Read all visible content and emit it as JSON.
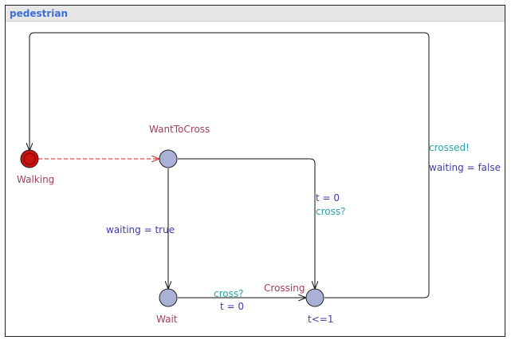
{
  "template": {
    "name": "pedestrian"
  },
  "colors": {
    "location_name": "#a0405a",
    "invariant": "#4a3f9a",
    "update": "#3d3da8",
    "sync": "#2aa3a3",
    "guard": "#2f9e4a",
    "location_fill": "#a9b1d6",
    "initial_fill": "#cc1111",
    "edge": "#111111",
    "dashed_edge": "#cc2222"
  },
  "locations": {
    "walking": {
      "name": "Walking",
      "initial": true
    },
    "want_to_cross": {
      "name": "WantToCross"
    },
    "wait": {
      "name": "Wait"
    },
    "crossing": {
      "name": "Crossing",
      "invariant": "t<=1"
    }
  },
  "edges": {
    "crossing_to_walking": {
      "sync": "crossed!",
      "update": "waiting = false"
    },
    "want_to_crossing": {
      "update": "t = 0",
      "sync": "cross?"
    },
    "want_to_wait": {
      "update": "waiting = true"
    },
    "wait_to_crossing": {
      "sync": "cross?",
      "update": "t = 0"
    }
  }
}
